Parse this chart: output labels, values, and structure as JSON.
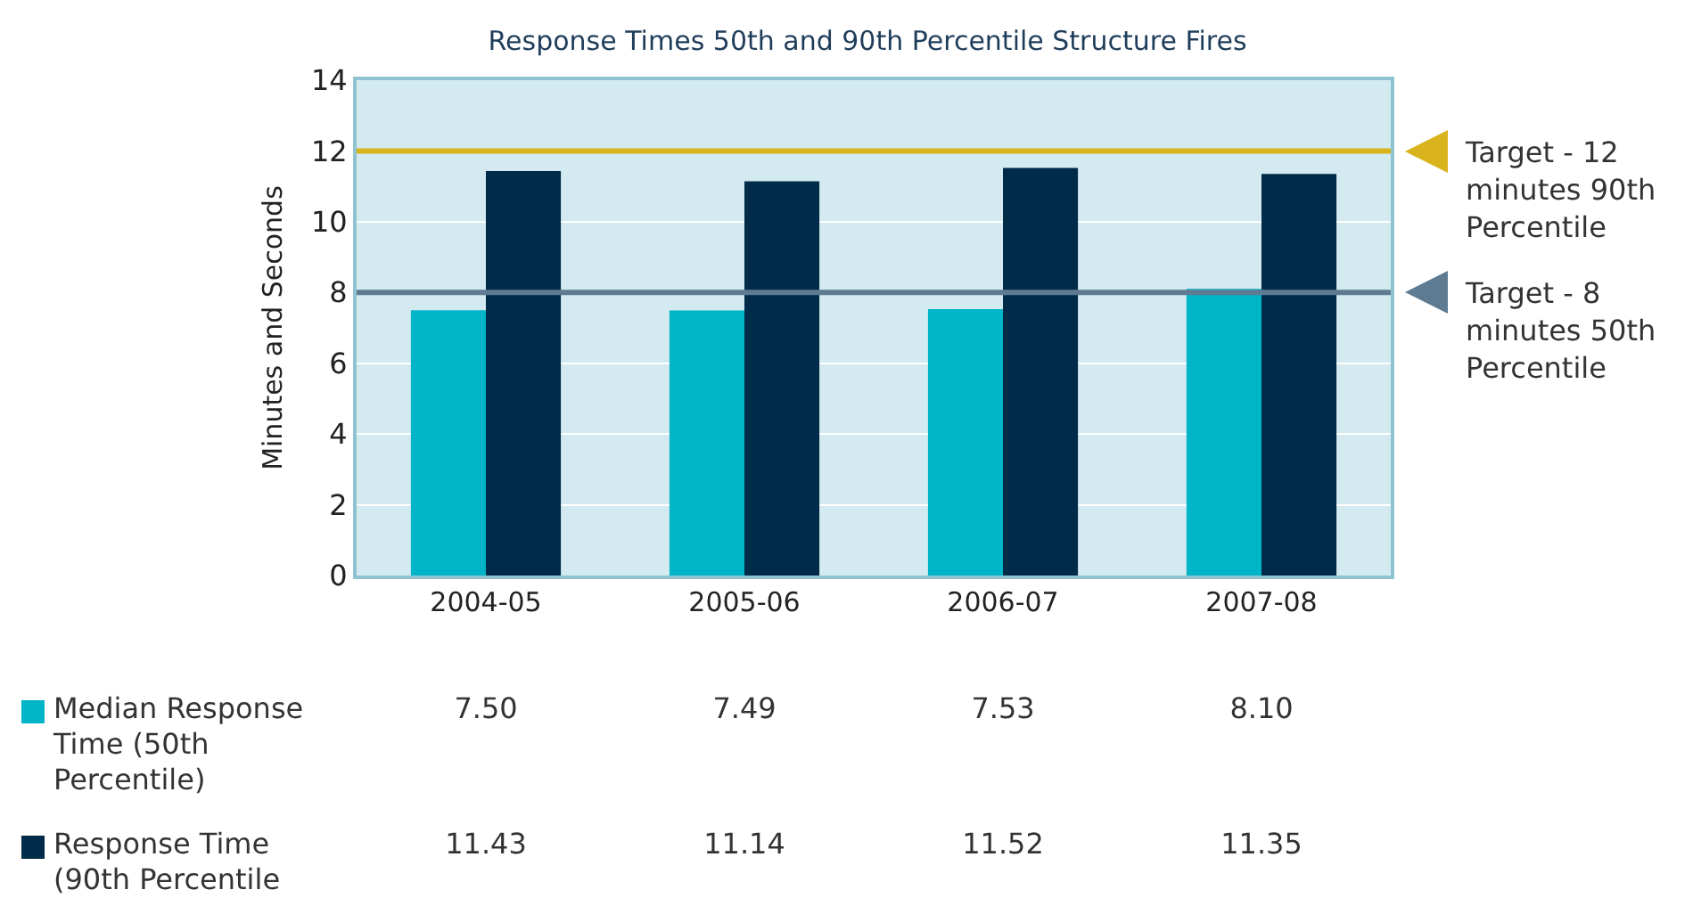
{
  "chart_data": {
    "type": "bar",
    "title": "Response Times 50th and 90th Percentile Structure Fires",
    "ylabel": "Minutes and Seconds",
    "categories": [
      "2004-05",
      "2005-06",
      "2006-07",
      "2007-08"
    ],
    "series": [
      {
        "name": "Median Response Time (50th Percentile)",
        "color": "#00b5c8",
        "values": [
          7.5,
          7.49,
          7.53,
          8.1
        ],
        "value_labels": [
          "7.50",
          "7.49",
          "7.53",
          "8.10"
        ]
      },
      {
        "name": "Response Time (90th Percentile",
        "color": "#002b49",
        "values": [
          11.43,
          11.14,
          11.52,
          11.35
        ],
        "value_labels": [
          "11.43",
          "11.14",
          "11.52",
          "11.35"
        ]
      }
    ],
    "ylim": [
      0,
      14
    ],
    "yticks": [
      0,
      2,
      4,
      6,
      8,
      10,
      12,
      14
    ],
    "grid": "y",
    "legend": "bottom left",
    "ref_lines": [
      {
        "axis": "y",
        "value": 12,
        "label": "Target - 12 minutes 90th Percentile",
        "color": "#d9b31c"
      },
      {
        "axis": "y",
        "value": 8,
        "label": "Target - 8 minutes 50th Percentile",
        "color": "#5e7b92"
      }
    ]
  }
}
